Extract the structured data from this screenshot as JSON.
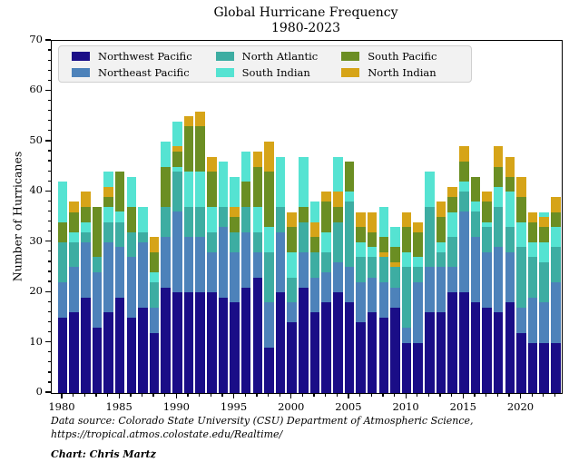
{
  "title_line1": "Global Hurricane Frequency",
  "title_line2": "1980-2023",
  "ylabel": "Number of Hurricanes",
  "source_line1": "Data source: Colorado State University (CSU) Department of Atmospheric Science,",
  "source_line2": "https://tropical.atmos.colostate.edu/Realtime/",
  "credit": "Chart: Chris Martz",
  "chart_data": {
    "type": "bar",
    "stacked": true,
    "title": "Global Hurricane Frequency 1980-2023",
    "xlabel": "",
    "ylabel": "Number of Hurricanes",
    "ylim": [
      0,
      70
    ],
    "yticks": [
      0,
      10,
      20,
      30,
      40,
      50,
      60,
      70
    ],
    "y_minor_step": 2,
    "xticks_major": [
      1980,
      1985,
      1990,
      1995,
      2000,
      2005,
      2010,
      2015,
      2020
    ],
    "grid": false,
    "legend_position": "upper-left-inside",
    "series": [
      {
        "key": "nw",
        "label": "Northwest Pacific",
        "color": "#1a0d87"
      },
      {
        "key": "ne",
        "label": "Northeast Pacific",
        "color": "#4d82ba"
      },
      {
        "key": "na",
        "label": "North Atlantic",
        "color": "#3dada2"
      },
      {
        "key": "si",
        "label": "South Indian",
        "color": "#55e3d2"
      },
      {
        "key": "sp",
        "label": "South Pacific",
        "color": "#6b8e23"
      },
      {
        "key": "ni",
        "label": "North Indian",
        "color": "#d6a418"
      }
    ],
    "years": [
      {
        "year": 1980,
        "total": 42,
        "segments": [
          [
            "nw",
            15
          ],
          [
            "ne",
            7
          ],
          [
            "na",
            8
          ],
          [
            "sp",
            4
          ],
          [
            "si",
            8
          ]
        ]
      },
      {
        "year": 1981,
        "total": 38,
        "segments": [
          [
            "nw",
            16
          ],
          [
            "ne",
            9
          ],
          [
            "na",
            5
          ],
          [
            "si",
            2
          ],
          [
            "sp",
            4
          ],
          [
            "ni",
            2
          ]
        ]
      },
      {
        "year": 1982,
        "total": 40,
        "segments": [
          [
            "nw",
            19
          ],
          [
            "ne",
            11
          ],
          [
            "na",
            2
          ],
          [
            "si",
            2
          ],
          [
            "sp",
            3
          ],
          [
            "ni",
            3
          ]
        ]
      },
      {
        "year": 1983,
        "total": 37,
        "segments": [
          [
            "nw",
            13
          ],
          [
            "ne",
            11
          ],
          [
            "na",
            3
          ],
          [
            "sp",
            10
          ]
        ]
      },
      {
        "year": 1984,
        "total": 44,
        "segments": [
          [
            "nw",
            16
          ],
          [
            "ne",
            14
          ],
          [
            "na",
            4
          ],
          [
            "si",
            3
          ],
          [
            "sp",
            2
          ],
          [
            "ni",
            2
          ],
          [
            "si",
            3
          ]
        ]
      },
      {
        "year": 1985,
        "total": 44,
        "segments": [
          [
            "nw",
            19
          ],
          [
            "ne",
            10
          ],
          [
            "na",
            5
          ],
          [
            "si",
            2
          ],
          [
            "sp",
            8
          ]
        ]
      },
      {
        "year": 1986,
        "total": 43,
        "segments": [
          [
            "nw",
            15
          ],
          [
            "ne",
            12
          ],
          [
            "na",
            5
          ],
          [
            "sp",
            5
          ],
          [
            "si",
            6
          ]
        ]
      },
      {
        "year": 1987,
        "total": 37,
        "segments": [
          [
            "nw",
            17
          ],
          [
            "ne",
            13
          ],
          [
            "na",
            2
          ],
          [
            "si",
            5
          ]
        ]
      },
      {
        "year": 1988,
        "total": 31,
        "segments": [
          [
            "nw",
            12
          ],
          [
            "ne",
            5
          ],
          [
            "na",
            5
          ],
          [
            "si",
            2
          ],
          [
            "sp",
            4
          ],
          [
            "ni",
            3
          ]
        ]
      },
      {
        "year": 1989,
        "total": 50,
        "segments": [
          [
            "nw",
            21
          ],
          [
            "ne",
            10
          ],
          [
            "na",
            6
          ],
          [
            "sp",
            8
          ],
          [
            "si",
            5
          ]
        ]
      },
      {
        "year": 1990,
        "total": 54,
        "segments": [
          [
            "nw",
            20
          ],
          [
            "ne",
            16
          ],
          [
            "na",
            8
          ],
          [
            "si",
            1
          ],
          [
            "sp",
            3
          ],
          [
            "ni",
            1
          ],
          [
            "si",
            5
          ]
        ]
      },
      {
        "year": 1991,
        "total": 55,
        "segments": [
          [
            "nw",
            20
          ],
          [
            "ne",
            11
          ],
          [
            "na",
            6
          ],
          [
            "si",
            7
          ],
          [
            "sp",
            9
          ],
          [
            "ni",
            2
          ]
        ]
      },
      {
        "year": 1992,
        "total": 56,
        "segments": [
          [
            "nw",
            20
          ],
          [
            "ne",
            11
          ],
          [
            "na",
            6
          ],
          [
            "si",
            7
          ],
          [
            "sp",
            9
          ],
          [
            "ni",
            3
          ]
        ]
      },
      {
        "year": 1993,
        "total": 47,
        "segments": [
          [
            "nw",
            20
          ],
          [
            "ne",
            8
          ],
          [
            "na",
            4
          ],
          [
            "si",
            5
          ],
          [
            "sp",
            7
          ],
          [
            "ni",
            3
          ]
        ]
      },
      {
        "year": 1994,
        "total": 46,
        "segments": [
          [
            "nw",
            19
          ],
          [
            "ne",
            14
          ],
          [
            "na",
            4
          ],
          [
            "si",
            9
          ]
        ]
      },
      {
        "year": 1995,
        "total": 43,
        "segments": [
          [
            "nw",
            18
          ],
          [
            "ne",
            10
          ],
          [
            "na",
            4
          ],
          [
            "sp",
            3
          ],
          [
            "ni",
            2
          ],
          [
            "si",
            6
          ]
        ]
      },
      {
        "year": 1996,
        "total": 48,
        "segments": [
          [
            "nw",
            21
          ],
          [
            "ne",
            11
          ],
          [
            "na",
            5
          ],
          [
            "sp",
            5
          ],
          [
            "si",
            6
          ]
        ]
      },
      {
        "year": 1997,
        "total": 48,
        "segments": [
          [
            "nw",
            23
          ],
          [
            "ne",
            5
          ],
          [
            "na",
            4
          ],
          [
            "si",
            5
          ],
          [
            "sp",
            8
          ],
          [
            "ni",
            3
          ]
        ]
      },
      {
        "year": 1998,
        "total": 50,
        "segments": [
          [
            "nw",
            9
          ],
          [
            "ne",
            9
          ],
          [
            "na",
            10
          ],
          [
            "si",
            5
          ],
          [
            "sp",
            11
          ],
          [
            "ni",
            6
          ]
        ]
      },
      {
        "year": 1999,
        "total": 47,
        "segments": [
          [
            "nw",
            20
          ],
          [
            "ne",
            12
          ],
          [
            "na",
            5
          ],
          [
            "si",
            10
          ]
        ]
      },
      {
        "year": 2000,
        "total": 36,
        "segments": [
          [
            "nw",
            14
          ],
          [
            "ne",
            4
          ],
          [
            "na",
            5
          ],
          [
            "si",
            5
          ],
          [
            "sp",
            5
          ],
          [
            "ni",
            3
          ]
        ]
      },
      {
        "year": 2001,
        "total": 47,
        "segments": [
          [
            "nw",
            21
          ],
          [
            "ne",
            7
          ],
          [
            "na",
            6
          ],
          [
            "sp",
            3
          ],
          [
            "si",
            10
          ]
        ]
      },
      {
        "year": 2002,
        "total": 38,
        "segments": [
          [
            "nw",
            16
          ],
          [
            "ne",
            7
          ],
          [
            "na",
            5
          ],
          [
            "sp",
            3
          ],
          [
            "ni",
            3
          ],
          [
            "si",
            4
          ]
        ]
      },
      {
        "year": 2003,
        "total": 40,
        "segments": [
          [
            "nw",
            18
          ],
          [
            "ne",
            6
          ],
          [
            "na",
            4
          ],
          [
            "si",
            4
          ],
          [
            "sp",
            6
          ],
          [
            "ni",
            2
          ]
        ]
      },
      {
        "year": 2004,
        "total": 47,
        "segments": [
          [
            "nw",
            20
          ],
          [
            "ne",
            6
          ],
          [
            "na",
            8
          ],
          [
            "sp",
            3
          ],
          [
            "ni",
            3
          ],
          [
            "si",
            7
          ]
        ]
      },
      {
        "year": 2005,
        "total": 46,
        "segments": [
          [
            "nw",
            18
          ],
          [
            "ne",
            7
          ],
          [
            "na",
            13
          ],
          [
            "si",
            2
          ],
          [
            "sp",
            6
          ]
        ]
      },
      {
        "year": 2006,
        "total": 36,
        "segments": [
          [
            "nw",
            14
          ],
          [
            "ne",
            8
          ],
          [
            "na",
            5
          ],
          [
            "si",
            3
          ],
          [
            "sp",
            3
          ],
          [
            "ni",
            3
          ]
        ]
      },
      {
        "year": 2007,
        "total": 36,
        "segments": [
          [
            "nw",
            16
          ],
          [
            "ne",
            7
          ],
          [
            "na",
            4
          ],
          [
            "si",
            2
          ],
          [
            "sp",
            3
          ],
          [
            "ni",
            4
          ]
        ]
      },
      {
        "year": 2008,
        "total": 37,
        "segments": [
          [
            "nw",
            15
          ],
          [
            "ne",
            7
          ],
          [
            "na",
            5
          ],
          [
            "ni",
            1
          ],
          [
            "sp",
            3
          ],
          [
            "si",
            6
          ]
        ]
      },
      {
        "year": 2009,
        "total": 33,
        "segments": [
          [
            "nw",
            17
          ],
          [
            "ne",
            4
          ],
          [
            "na",
            4
          ],
          [
            "ni",
            1
          ],
          [
            "sp",
            3
          ],
          [
            "si",
            4
          ]
        ]
      },
      {
        "year": 2010,
        "total": 36,
        "segments": [
          [
            "nw",
            10
          ],
          [
            "ne",
            3
          ],
          [
            "na",
            12
          ],
          [
            "si",
            3
          ],
          [
            "sp",
            5
          ],
          [
            "ni",
            3
          ]
        ]
      },
      {
        "year": 2011,
        "total": 34,
        "segments": [
          [
            "nw",
            10
          ],
          [
            "ne",
            12
          ],
          [
            "na",
            3
          ],
          [
            "si",
            2
          ],
          [
            "sp",
            5
          ],
          [
            "ni",
            2
          ]
        ]
      },
      {
        "year": 2012,
        "total": 44,
        "segments": [
          [
            "nw",
            16
          ],
          [
            "ne",
            9
          ],
          [
            "na",
            12
          ],
          [
            "si",
            7
          ]
        ]
      },
      {
        "year": 2013,
        "total": 38,
        "segments": [
          [
            "nw",
            16
          ],
          [
            "ne",
            9
          ],
          [
            "na",
            3
          ],
          [
            "si",
            2
          ],
          [
            "sp",
            5
          ],
          [
            "ni",
            3
          ]
        ]
      },
      {
        "year": 2014,
        "total": 41,
        "segments": [
          [
            "nw",
            20
          ],
          [
            "ne",
            5
          ],
          [
            "na",
            6
          ],
          [
            "si",
            5
          ],
          [
            "sp",
            3
          ],
          [
            "ni",
            2
          ]
        ]
      },
      {
        "year": 2015,
        "total": 49,
        "segments": [
          [
            "nw",
            20
          ],
          [
            "ne",
            16
          ],
          [
            "na",
            4
          ],
          [
            "si",
            2
          ],
          [
            "sp",
            4
          ],
          [
            "ni",
            3
          ]
        ]
      },
      {
        "year": 2016,
        "total": 43,
        "segments": [
          [
            "nw",
            18
          ],
          [
            "ne",
            13
          ],
          [
            "na",
            5
          ],
          [
            "si",
            2
          ],
          [
            "sp",
            5
          ]
        ]
      },
      {
        "year": 2017,
        "total": 40,
        "segments": [
          [
            "nw",
            17
          ],
          [
            "ne",
            11
          ],
          [
            "na",
            5
          ],
          [
            "si",
            1
          ],
          [
            "sp",
            4
          ],
          [
            "ni",
            2
          ]
        ]
      },
      {
        "year": 2018,
        "total": 49,
        "segments": [
          [
            "nw",
            16
          ],
          [
            "ne",
            13
          ],
          [
            "na",
            8
          ],
          [
            "si",
            4
          ],
          [
            "sp",
            4
          ],
          [
            "ni",
            4
          ]
        ]
      },
      {
        "year": 2019,
        "total": 47,
        "segments": [
          [
            "nw",
            18
          ],
          [
            "ne",
            10
          ],
          [
            "na",
            5
          ],
          [
            "si",
            7
          ],
          [
            "sp",
            3
          ],
          [
            "ni",
            4
          ]
        ]
      },
      {
        "year": 2020,
        "total": 43,
        "segments": [
          [
            "nw",
            12
          ],
          [
            "ne",
            5
          ],
          [
            "na",
            12
          ],
          [
            "si",
            5
          ],
          [
            "sp",
            5
          ],
          [
            "ni",
            4
          ]
        ]
      },
      {
        "year": 2021,
        "total": 36,
        "segments": [
          [
            "nw",
            10
          ],
          [
            "ne",
            9
          ],
          [
            "na",
            8
          ],
          [
            "si",
            3
          ],
          [
            "sp",
            4
          ],
          [
            "ni",
            2
          ]
        ]
      },
      {
        "year": 2022,
        "total": 36,
        "segments": [
          [
            "nw",
            10
          ],
          [
            "ne",
            8
          ],
          [
            "na",
            8
          ],
          [
            "si",
            4
          ],
          [
            "sp",
            3
          ],
          [
            "ni",
            2
          ],
          [
            "si",
            1
          ]
        ]
      },
      {
        "year": 2023,
        "total": 39,
        "segments": [
          [
            "nw",
            10
          ],
          [
            "ne",
            12
          ],
          [
            "na",
            7
          ],
          [
            "si",
            4
          ],
          [
            "sp",
            3
          ],
          [
            "ni",
            3
          ]
        ]
      }
    ]
  }
}
